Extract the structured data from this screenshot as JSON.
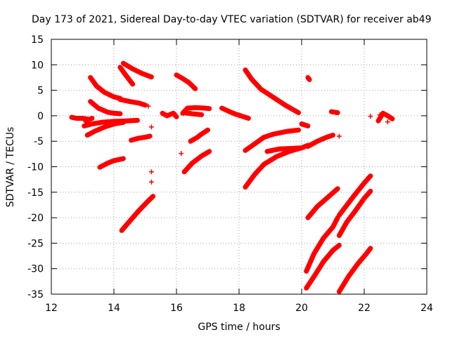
{
  "chart_data": {
    "type": "scatter",
    "title": "Day 173 of 2021, Sidereal Day-to-day VTEC variation (SDTVAR) for receiver ab49",
    "xlabel": "GPS time / hours",
    "ylabel": "SDTVAR / TECUs",
    "xlim": [
      12,
      24
    ],
    "ylim": [
      -35,
      15
    ],
    "xticks": [
      12,
      14,
      16,
      18,
      20,
      22,
      24
    ],
    "yticks": [
      -35,
      -30,
      -25,
      -20,
      -15,
      -10,
      -5,
      0,
      5,
      10,
      15
    ],
    "grid": true,
    "marker": "plus",
    "color": "#ff0000",
    "series": [
      {
        "segments": [
          [
            [
              12.65,
              -0.3
            ],
            [
              12.8,
              -0.5
            ],
            [
              13.0,
              -0.5
            ],
            [
              13.2,
              -0.7
            ]
          ],
          [
            [
              13.05,
              -2.0
            ],
            [
              13.3,
              -1.6
            ],
            [
              13.6,
              -1.3
            ],
            [
              14.0,
              -1.1
            ],
            [
              14.4,
              -1.0
            ],
            [
              14.75,
              -0.9
            ]
          ],
          [
            [
              13.1,
              -1.0
            ],
            [
              13.3,
              -0.5
            ]
          ],
          [
            [
              13.15,
              -3.8
            ],
            [
              13.4,
              -3.0
            ],
            [
              13.7,
              -2.2
            ],
            [
              14.0,
              -1.6
            ],
            [
              14.3,
              -1.3
            ]
          ],
          [
            [
              13.25,
              7.5
            ],
            [
              13.45,
              5.8
            ],
            [
              13.7,
              4.6
            ],
            [
              14.0,
              3.7
            ],
            [
              14.2,
              3.4
            ]
          ],
          [
            [
              13.25,
              2.8
            ],
            [
              13.5,
              1.5
            ],
            [
              13.8,
              0.7
            ],
            [
              14.0,
              0.5
            ],
            [
              14.2,
              0.4
            ]
          ],
          [
            [
              13.55,
              -10.1
            ],
            [
              13.8,
              -9.3
            ],
            [
              14.0,
              -8.8
            ],
            [
              14.3,
              -8.4
            ]
          ],
          [
            [
              14.2,
              3.2
            ],
            [
              14.5,
              2.8
            ],
            [
              14.8,
              2.5
            ],
            [
              15.0,
              2.1
            ]
          ],
          [
            [
              14.3,
              10.3
            ],
            [
              14.6,
              9.2
            ],
            [
              14.9,
              8.3
            ],
            [
              15.2,
              7.6
            ]
          ],
          [
            [
              14.2,
              9.5
            ],
            [
              14.4,
              7.8
            ],
            [
              14.6,
              6.2
            ]
          ],
          [
            [
              14.55,
              -4.8
            ],
            [
              14.8,
              -4.4
            ],
            [
              15.0,
              -4.2
            ],
            [
              15.15,
              -4.0
            ]
          ],
          [
            [
              14.25,
              -22.5
            ],
            [
              14.5,
              -20.7
            ],
            [
              14.8,
              -18.6
            ],
            [
              15.1,
              -16.7
            ],
            [
              15.25,
              -15.8
            ]
          ],
          [
            [
              15.55,
              0.5
            ],
            [
              15.7,
              0.0
            ],
            [
              15.9,
              0.5
            ],
            [
              16.0,
              -0.2
            ]
          ],
          [
            [
              16.0,
              8.0
            ],
            [
              16.2,
              7.3
            ],
            [
              16.4,
              6.5
            ],
            [
              16.6,
              5.3
            ]
          ],
          [
            [
              16.2,
              0.5
            ],
            [
              16.35,
              1.5
            ],
            [
              16.6,
              1.6
            ],
            [
              16.9,
              1.5
            ],
            [
              17.05,
              1.4
            ]
          ],
          [
            [
              16.25,
              0.6
            ],
            [
              16.5,
              0.4
            ],
            [
              16.8,
              0.2
            ]
          ],
          [
            [
              16.45,
              -5.0
            ],
            [
              16.65,
              -4.3
            ],
            [
              16.8,
              -3.6
            ],
            [
              17.0,
              -2.8
            ]
          ],
          [
            [
              16.25,
              -11.0
            ],
            [
              16.5,
              -9.3
            ],
            [
              16.8,
              -7.9
            ],
            [
              17.05,
              -7.0
            ]
          ],
          [
            [
              17.45,
              1.5
            ],
            [
              17.7,
              0.8
            ],
            [
              17.9,
              0.3
            ],
            [
              18.2,
              -0.3
            ],
            [
              18.3,
              -0.5
            ]
          ],
          [
            [
              18.2,
              9.0
            ],
            [
              18.4,
              7.2
            ],
            [
              18.7,
              5.2
            ],
            [
              19.1,
              3.6
            ],
            [
              19.5,
              2.0
            ],
            [
              19.9,
              0.6
            ]
          ],
          [
            [
              18.2,
              -6.8
            ],
            [
              18.5,
              -5.5
            ],
            [
              18.8,
              -4.2
            ],
            [
              19.1,
              -3.6
            ],
            [
              19.5,
              -3.1
            ],
            [
              19.9,
              -2.8
            ]
          ],
          [
            [
              18.2,
              -14.0
            ],
            [
              18.5,
              -11.5
            ],
            [
              18.8,
              -9.5
            ],
            [
              19.2,
              -8.0
            ],
            [
              19.6,
              -7.0
            ],
            [
              20.0,
              -6.3
            ],
            [
              20.2,
              -5.8
            ]
          ],
          [
            [
              18.9,
              -7.0
            ],
            [
              19.3,
              -6.5
            ],
            [
              19.7,
              -6.4
            ],
            [
              20.0,
              -6.3
            ]
          ],
          [
            [
              20.0,
              -1.6
            ],
            [
              20.2,
              -2.0
            ]
          ],
          [
            [
              20.2,
              -6.0
            ],
            [
              20.5,
              -5.0
            ],
            [
              20.8,
              -4.2
            ],
            [
              21.0,
              -3.8
            ]
          ],
          [
            [
              20.2,
              7.5
            ],
            [
              20.25,
              7.1
            ]
          ],
          [
            [
              20.95,
              0.8
            ],
            [
              21.15,
              0.6
            ]
          ],
          [
            [
              20.2,
              -20.0
            ],
            [
              20.5,
              -17.8
            ],
            [
              20.8,
              -16.2
            ],
            [
              21.15,
              -14.3
            ]
          ],
          [
            [
              20.15,
              -30.5
            ],
            [
              20.4,
              -27.0
            ],
            [
              20.7,
              -24.0
            ],
            [
              21.0,
              -21.8
            ],
            [
              21.15,
              -20.0
            ]
          ],
          [
            [
              20.15,
              -33.8
            ],
            [
              20.4,
              -31.5
            ],
            [
              20.7,
              -28.6
            ],
            [
              21.0,
              -26.4
            ],
            [
              21.2,
              -25.4
            ]
          ],
          [
            [
              21.2,
              -23.5
            ],
            [
              21.45,
              -20.8
            ],
            [
              21.7,
              -18.8
            ],
            [
              22.0,
              -16.2
            ],
            [
              22.2,
              -14.8
            ]
          ],
          [
            [
              21.2,
              -19.5
            ],
            [
              21.45,
              -17.5
            ],
            [
              21.7,
              -15.5
            ],
            [
              22.0,
              -13.2
            ],
            [
              22.2,
              -11.8
            ]
          ],
          [
            [
              21.2,
              -34.5
            ],
            [
              21.5,
              -31.5
            ],
            [
              21.8,
              -29.0
            ],
            [
              22.05,
              -27.2
            ],
            [
              22.2,
              -26.0
            ]
          ],
          [
            [
              22.45,
              -1.0
            ],
            [
              22.6,
              0.5
            ],
            [
              22.75,
              0.0
            ],
            [
              22.9,
              -0.6
            ]
          ]
        ],
        "points": [
          [
            15.2,
            -11.0
          ],
          [
            15.2,
            -13.0
          ],
          [
            15.2,
            -2.2
          ],
          [
            15.1,
            1.9
          ],
          [
            16.15,
            -7.4
          ],
          [
            21.2,
            -4.0
          ],
          [
            22.2,
            -0.1
          ],
          [
            22.5,
            0.2
          ],
          [
            22.75,
            -1.2
          ]
        ]
      }
    ]
  }
}
